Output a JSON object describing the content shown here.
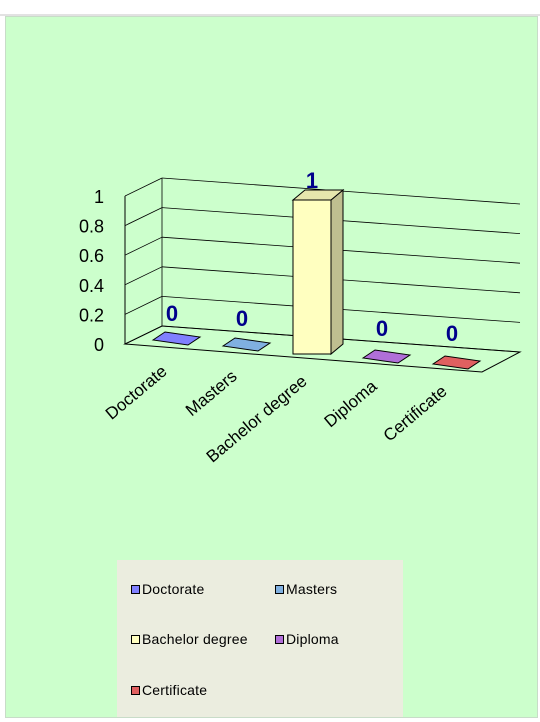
{
  "chart_data": {
    "type": "bar",
    "categories": [
      "Doctorate",
      "Masters",
      "Bachelor degree",
      "Diploma",
      "Certificate"
    ],
    "values": [
      0,
      0,
      1,
      0,
      0
    ],
    "data_labels": [
      "0",
      "0",
      "1",
      "0",
      "0"
    ],
    "yticks": [
      "1",
      "0.8",
      "0.6",
      "0.4",
      "0.2",
      "0"
    ],
    "ylim": [
      0,
      1
    ],
    "title": "",
    "xlabel": "",
    "ylabel": "",
    "grid": true,
    "style": "3d",
    "legend_position": "bottom",
    "colors": [
      "#8080ff",
      "#80b0e0",
      "#ffffc0",
      "#b06fd8",
      "#e06060"
    ],
    "background": "#ccffcc",
    "label_color": "#00008b"
  },
  "legend": {
    "items": [
      {
        "label": "Doctorate",
        "color": "#8080ff"
      },
      {
        "label": "Masters",
        "color": "#80b0e0"
      },
      {
        "label": "Bachelor degree",
        "color": "#ffffc0"
      },
      {
        "label": "Diploma",
        "color": "#b06fd8"
      },
      {
        "label": "Certificate",
        "color": "#e06060"
      }
    ]
  }
}
